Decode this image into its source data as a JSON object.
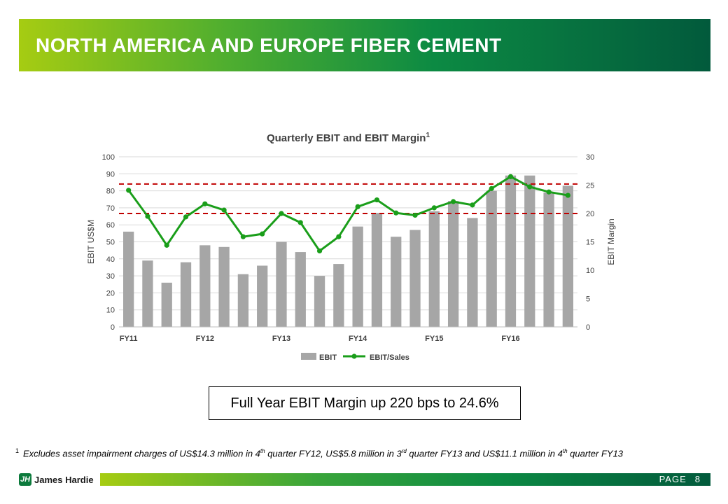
{
  "header": {
    "title": "NORTH AMERICA AND EUROPE FIBER CEMENT"
  },
  "callout": {
    "text": "Full Year EBIT Margin up 220 bps to 24.6%"
  },
  "footnote": {
    "marker": "1",
    "parts": [
      "Excludes asset impairment charges of US$14.3 million in 4",
      "th",
      " quarter FY12, US$5.8 million in 3",
      "rd",
      " quarter FY13 and US$11.1 million in 4",
      "th",
      " quarter FY13"
    ]
  },
  "footer": {
    "page_label": "PAGE",
    "page_number": "8",
    "logo_text": "James Hardie"
  },
  "colors": {
    "bar": "#a6a6a6",
    "line": "#1a9e1a",
    "dashed": "#c00000",
    "header_start": "#a6cc12",
    "header_end": "#025a3c"
  },
  "chart_data": {
    "type": "bar",
    "title": "Quarterly EBIT and EBIT Margin",
    "title_sup": "1",
    "ylabel": "EBIT US$M",
    "y2label": "EBIT Margin",
    "ylim": [
      0,
      100
    ],
    "y2lim": [
      0,
      30
    ],
    "yticks": [
      0,
      10,
      20,
      30,
      40,
      50,
      60,
      70,
      80,
      90,
      100
    ],
    "y2ticks": [
      0,
      5,
      10,
      15,
      20,
      25,
      30
    ],
    "x_tick_labels": [
      {
        "index": 0,
        "label": "FY11"
      },
      {
        "index": 4,
        "label": "FY12"
      },
      {
        "index": 8,
        "label": "FY13"
      },
      {
        "index": 12,
        "label": "FY14"
      },
      {
        "index": 16,
        "label": "FY15"
      },
      {
        "index": 20,
        "label": "FY16"
      }
    ],
    "series": [
      {
        "name": "EBIT",
        "type": "bar",
        "axis": "left",
        "values": [
          56,
          39,
          26,
          38,
          48,
          47,
          31,
          36,
          50,
          44,
          30,
          37,
          59,
          67,
          53,
          57,
          68,
          74,
          64,
          80,
          89,
          89,
          79,
          83
        ]
      },
      {
        "name": "EBIT/Sales",
        "type": "line",
        "axis": "right",
        "values": [
          24.1,
          19.5,
          14.4,
          19.4,
          21.7,
          20.6,
          15.9,
          16.4,
          20.0,
          18.4,
          13.4,
          15.9,
          21.2,
          22.4,
          20.1,
          19.7,
          21.0,
          22.1,
          21.5,
          24.4,
          26.5,
          24.7,
          23.8,
          23.2
        ]
      }
    ],
    "reference_lines": [
      {
        "axis": "right",
        "value": 25.2,
        "style": "dashed"
      },
      {
        "axis": "right",
        "value": 20.0,
        "style": "dashed"
      }
    ],
    "legend": "bottom"
  }
}
